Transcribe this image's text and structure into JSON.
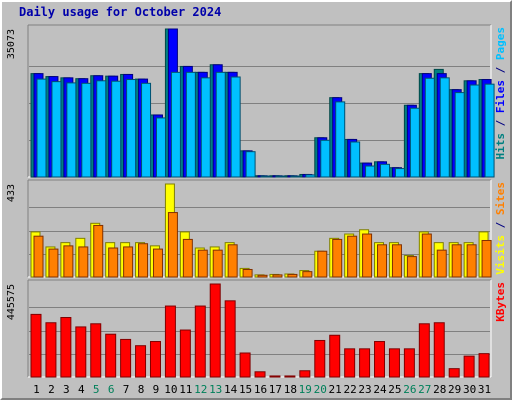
{
  "chart_data": {
    "type": "bar",
    "title": "Daily usage for October 2024",
    "categories": [
      "1",
      "2",
      "3",
      "4",
      "5",
      "6",
      "7",
      "8",
      "9",
      "10",
      "11",
      "12",
      "13",
      "14",
      "15",
      "16",
      "17",
      "18",
      "19",
      "20",
      "21",
      "22",
      "23",
      "24",
      "25",
      "26",
      "27",
      "28",
      "29",
      "30",
      "31"
    ],
    "weekend_days": [
      "5",
      "6",
      "12",
      "13",
      "19",
      "20",
      "26",
      "27"
    ],
    "panels": [
      {
        "id": "hits",
        "ymax_label": "35073",
        "ymax": 35073,
        "right_labels": [
          {
            "text": "Hits",
            "color": "#008080"
          },
          {
            "text": " / ",
            "color": "#000080"
          },
          {
            "text": "Files",
            "color": "#0000ff"
          },
          {
            "text": " / ",
            "color": "#000080"
          },
          {
            "text": "Pages",
            "color": "#00c0ff"
          }
        ],
        "series": [
          {
            "name": "Hits",
            "color": "#008080",
            "values": [
              24500,
              23800,
              23500,
              23300,
              24000,
              23900,
              24300,
              23200,
              14700,
              35073,
              26200,
              24800,
              26600,
              24800,
              6200,
              300,
              300,
              300,
              600,
              9300,
              18800,
              8900,
              3300,
              3600,
              2200,
              17000,
              24500,
              25500,
              20700,
              22800,
              23100
            ]
          },
          {
            "name": "Files",
            "color": "#0000ff",
            "values": [
              24500,
              23800,
              23500,
              23300,
              24000,
              23900,
              24300,
              23200,
              14700,
              35073,
              26200,
              24800,
              26600,
              24800,
              6200,
              300,
              300,
              300,
              600,
              9300,
              18800,
              8900,
              3300,
              3600,
              2200,
              17000,
              24500,
              24500,
              20700,
              22800,
              23100
            ]
          },
          {
            "name": "Pages",
            "color": "#00c0ff",
            "values": [
              23200,
              22600,
              22300,
              22200,
              22800,
              22700,
              23100,
              22200,
              14000,
              24800,
              24800,
              23500,
              24800,
              23700,
              6000,
              200,
              200,
              200,
              500,
              8700,
              17800,
              8300,
              2600,
              3000,
              2000,
              16300,
              23400,
              23500,
              20000,
              21800,
              22000
            ]
          }
        ]
      },
      {
        "id": "visits",
        "ymax_label": "433",
        "ymax": 433,
        "right_labels": [
          {
            "text": "Visits",
            "color": "#ffff00"
          },
          {
            "text": " / ",
            "color": "#000080"
          },
          {
            "text": "Sites",
            "color": "#ff8000"
          }
        ],
        "series": [
          {
            "name": "Visits",
            "color": "#ffff00",
            "values": [
              210,
              140,
              160,
              180,
              250,
              160,
              160,
              160,
              145,
              433,
              210,
              135,
              140,
              160,
              40,
              10,
              12,
              14,
              30,
              120,
              180,
              200,
              220,
              160,
              160,
              100,
              210,
              160,
              160,
              160,
              210
            ]
          },
          {
            "name": "Sites",
            "color": "#ff8000",
            "values": [
              190,
              130,
              145,
              140,
              240,
              135,
              140,
              155,
              130,
              300,
              175,
              125,
              125,
              150,
              35,
              8,
              10,
              12,
              25,
              120,
              175,
              190,
              200,
              150,
              150,
              95,
              200,
              125,
              150,
              150,
              170
            ]
          }
        ]
      },
      {
        "id": "kbytes",
        "ymax_label": "445575",
        "ymax": 445575,
        "right_labels": [
          {
            "text": "KBytes",
            "color": "#ff0000"
          }
        ],
        "series": [
          {
            "name": "KBytes",
            "color": "#ff0000",
            "values": [
              300000,
              260000,
              285000,
              240000,
              255000,
              205000,
              180000,
              150000,
              170000,
              340000,
              225000,
              340000,
              445575,
              365000,
              115000,
              25000,
              5000,
              5000,
              30000,
              175000,
              200000,
              135000,
              135000,
              170000,
              135000,
              135000,
              255000,
              260000,
              40000,
              100000,
              112000
            ]
          }
        ]
      }
    ]
  }
}
